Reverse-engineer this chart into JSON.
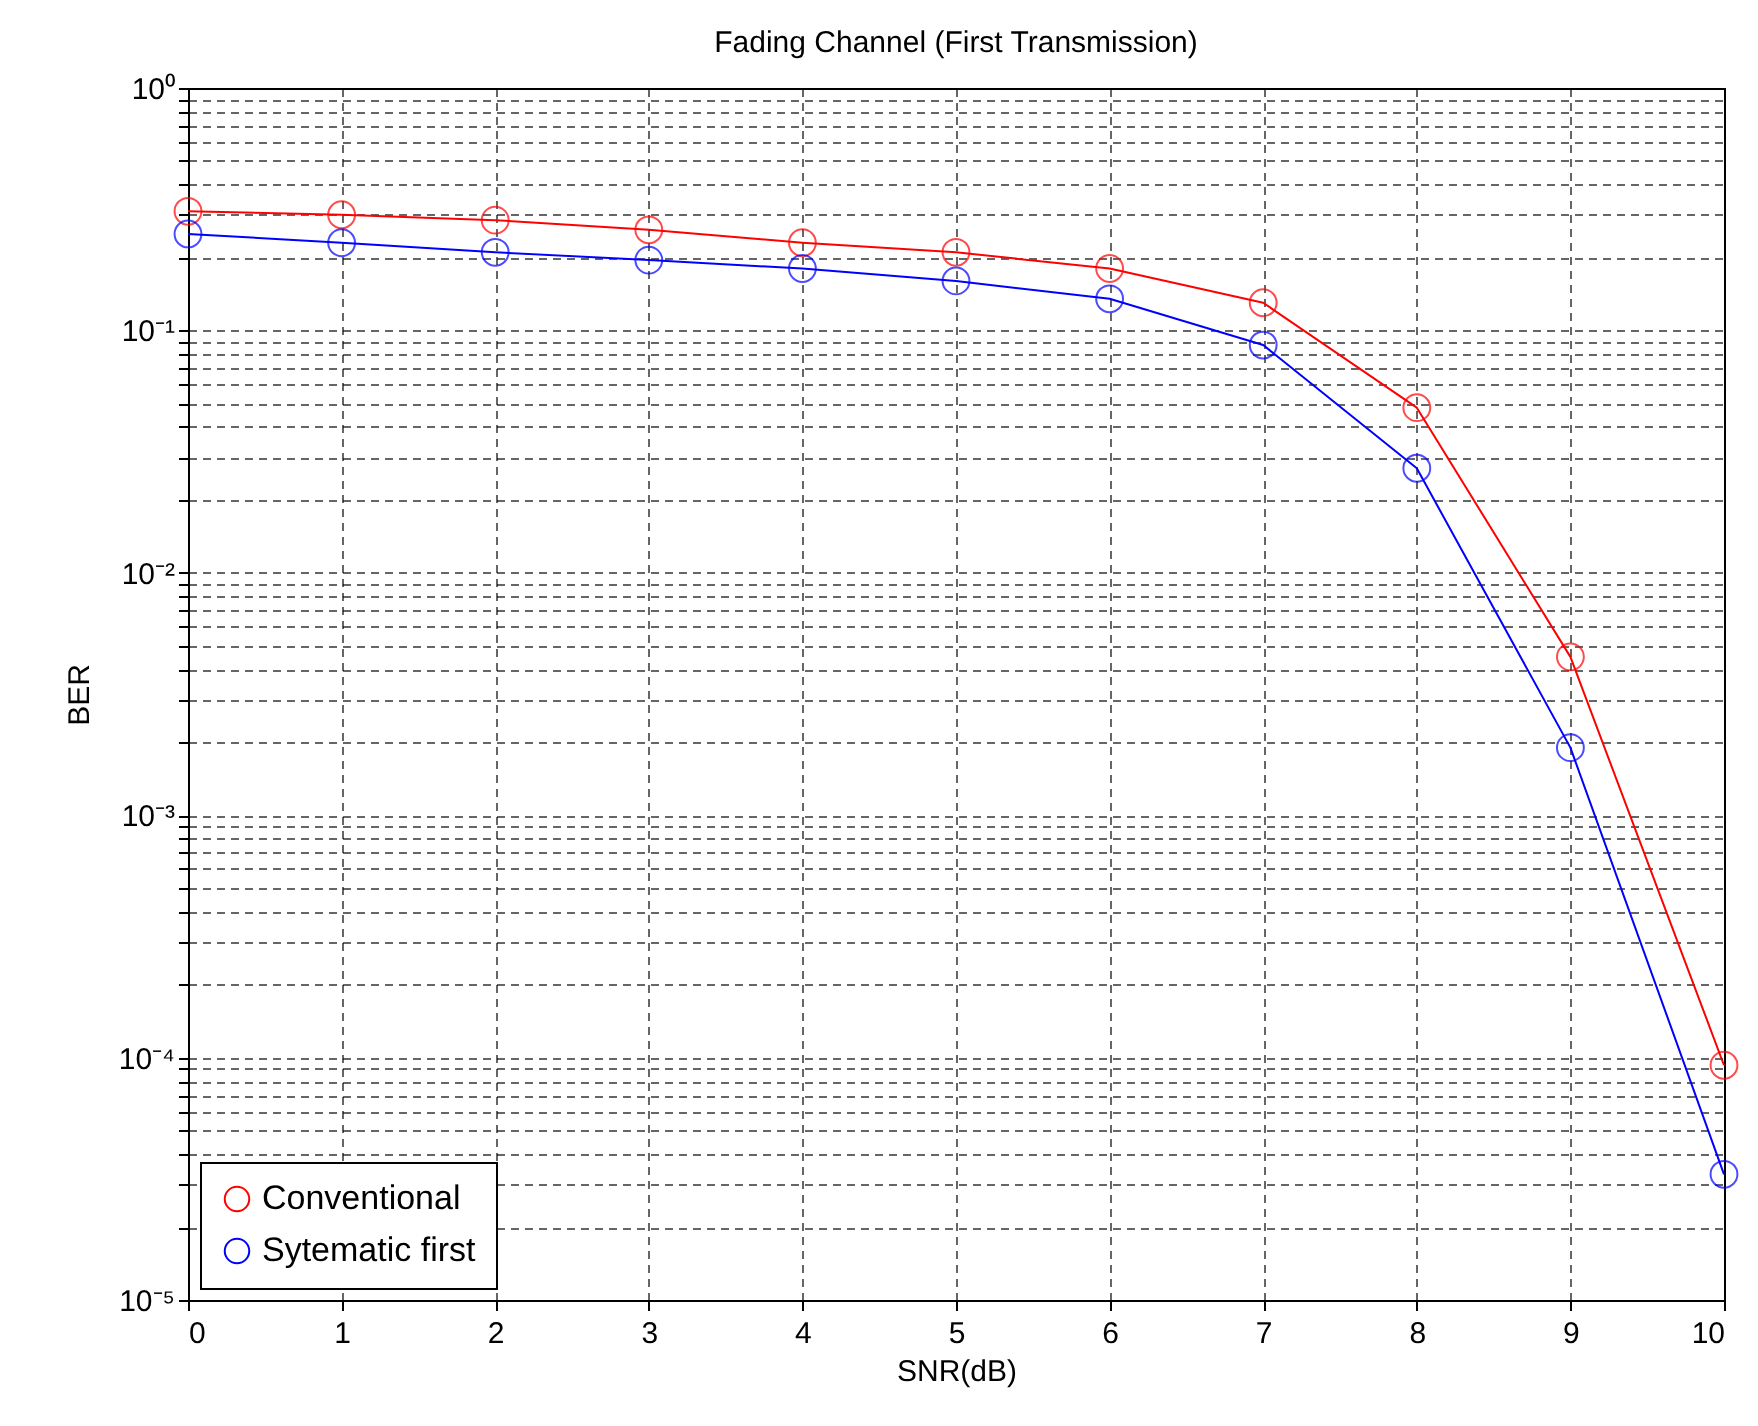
{
  "chart_data": {
    "type": "line",
    "title": "Fading Channel (First Transmission)",
    "xlabel": "SNR(dB)",
    "ylabel": "BER",
    "x": [
      0,
      1,
      2,
      3,
      4,
      5,
      6,
      7,
      8,
      9,
      10
    ],
    "series": [
      {
        "name": "Conventional",
        "color": "#ff0000",
        "values": [
          0.31,
          0.3,
          0.285,
          0.26,
          0.23,
          0.21,
          0.18,
          0.13,
          0.048,
          0.0045,
          9.3e-05
        ]
      },
      {
        "name": "Sytematic first",
        "color": "#0000ff",
        "values": [
          0.25,
          0.23,
          0.21,
          0.195,
          0.18,
          0.16,
          0.135,
          0.087,
          0.027,
          0.0019,
          3.3e-05
        ]
      }
    ],
    "log": "y",
    "xlim": [
      0,
      10
    ],
    "xticks": [
      0,
      1,
      2,
      3,
      4,
      5,
      6,
      7,
      8,
      9,
      10
    ],
    "ylim": [
      1e-05,
      1
    ],
    "yticks": [
      {
        "value": 1e-05,
        "label": "10⁻⁵"
      },
      {
        "value": 2e-05,
        "label": null
      },
      {
        "value": 3e-05,
        "label": null
      },
      {
        "value": 4e-05,
        "label": null
      },
      {
        "value": 5e-05,
        "label": null
      },
      {
        "value": 6e-05,
        "label": null
      },
      {
        "value": 7e-05,
        "label": null
      },
      {
        "value": 8e-05,
        "label": null
      },
      {
        "value": 9e-05,
        "label": null
      },
      {
        "value": 0.0001,
        "label": "10⁻⁴"
      },
      {
        "value": 0.0002,
        "label": null
      },
      {
        "value": 0.0003,
        "label": null
      },
      {
        "value": 0.0004,
        "label": null
      },
      {
        "value": 0.0005,
        "label": null
      },
      {
        "value": 0.0006,
        "label": null
      },
      {
        "value": 0.0007,
        "label": null
      },
      {
        "value": 0.0008,
        "label": null
      },
      {
        "value": 0.0009,
        "label": null
      },
      {
        "value": 0.001,
        "label": "10⁻³"
      },
      {
        "value": 0.002,
        "label": null
      },
      {
        "value": 0.003,
        "label": null
      },
      {
        "value": 0.004,
        "label": null
      },
      {
        "value": 0.005,
        "label": null
      },
      {
        "value": 0.006,
        "label": null
      },
      {
        "value": 0.007,
        "label": null
      },
      {
        "value": 0.008,
        "label": null
      },
      {
        "value": 0.009,
        "label": null
      },
      {
        "value": 0.01,
        "label": "10⁻²"
      },
      {
        "value": 0.02,
        "label": null
      },
      {
        "value": 0.03,
        "label": null
      },
      {
        "value": 0.04,
        "label": null
      },
      {
        "value": 0.05,
        "label": null
      },
      {
        "value": 0.06,
        "label": null
      },
      {
        "value": 0.07,
        "label": null
      },
      {
        "value": 0.08,
        "label": null
      },
      {
        "value": 0.09,
        "label": null
      },
      {
        "value": 0.1,
        "label": "10⁻¹"
      },
      {
        "value": 0.2,
        "label": null
      },
      {
        "value": 0.3,
        "label": null
      },
      {
        "value": 0.4,
        "label": null
      },
      {
        "value": 0.5,
        "label": null
      },
      {
        "value": 0.6,
        "label": null
      },
      {
        "value": 0.7,
        "label": null
      },
      {
        "value": 0.8,
        "label": null
      },
      {
        "value": 0.9,
        "label": null
      },
      {
        "value": 1,
        "label": "10⁰"
      }
    ],
    "grid": true,
    "legend": "bottom left",
    "marker": "circle",
    "line_style": "solid"
  }
}
